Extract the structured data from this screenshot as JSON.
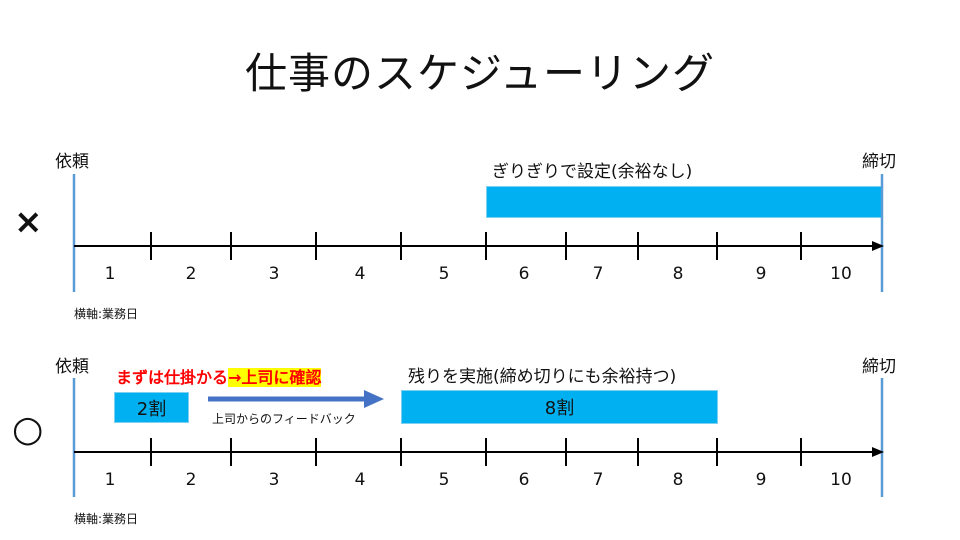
{
  "title": "仕事のスケジューリング",
  "ticks": [
    "1",
    "2",
    "3",
    "4",
    "5",
    "6",
    "7",
    "8",
    "9",
    "10"
  ],
  "start_label": "依頼",
  "end_label": "締切",
  "axis_note": "横軸:業務日",
  "colors": {
    "bar": "#00b0f0",
    "arrow": "#4472c4",
    "start_line": "#5b9bd5",
    "red": "#ff0000",
    "highlight": "#ffff00"
  },
  "bad": {
    "mark": "×",
    "bar_caption": "ぎりぎりで設定(余裕なし)",
    "bar_span_days": [
      6,
      10
    ]
  },
  "good": {
    "mark": "○",
    "caption_red_part": "まずは仕掛かる",
    "caption_highlight_part": "→上司に確認",
    "bar1_label": "2割",
    "bar1_span_days": [
      1,
      1
    ],
    "arrow_label": "上司からのフィードバック",
    "bar2_caption": "残りを実施(締め切りにも余裕持つ)",
    "bar2_label": "8割",
    "bar2_span_days": [
      5,
      8
    ]
  }
}
